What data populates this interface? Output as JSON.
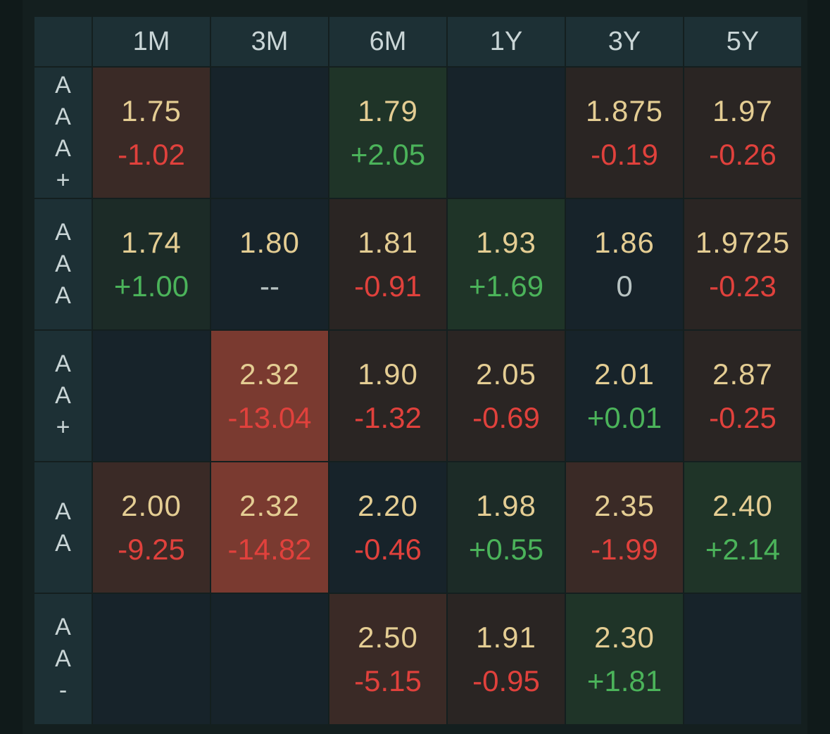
{
  "columns": [
    "1M",
    "3M",
    "6M",
    "1Y",
    "3Y",
    "5Y"
  ],
  "rows": [
    {
      "label_chars": [
        "A",
        "A",
        "A",
        "+"
      ],
      "cells": [
        {
          "value": "1.75",
          "change": "-1.02",
          "tone": "neg",
          "bg": "midred"
        },
        {
          "value": "",
          "change": "",
          "tone": "",
          "bg": "empty"
        },
        {
          "value": "1.79",
          "change": "+2.05",
          "tone": "pos",
          "bg": "green"
        },
        {
          "value": "",
          "change": "",
          "tone": "",
          "bg": "empty"
        },
        {
          "value": "1.875",
          "change": "-0.19",
          "tone": "neg",
          "bg": "lightred"
        },
        {
          "value": "1.97",
          "change": "-0.26",
          "tone": "neg",
          "bg": "lightred"
        }
      ]
    },
    {
      "label_chars": [
        "A",
        "A",
        "A"
      ],
      "cells": [
        {
          "value": "1.74",
          "change": "+1.00",
          "tone": "pos",
          "bg": "lightgreen"
        },
        {
          "value": "1.80",
          "change": "--",
          "tone": "neu",
          "bg": "neutral"
        },
        {
          "value": "1.81",
          "change": "-0.91",
          "tone": "neg",
          "bg": "lightred"
        },
        {
          "value": "1.93",
          "change": "+1.69",
          "tone": "pos",
          "bg": "green"
        },
        {
          "value": "1.86",
          "change": "0",
          "tone": "neu",
          "bg": "neutral"
        },
        {
          "value": "1.9725",
          "change": "-0.23",
          "tone": "neg",
          "bg": "lightred"
        }
      ]
    },
    {
      "label_chars": [
        "A",
        "A",
        "+"
      ],
      "cells": [
        {
          "value": "",
          "change": "",
          "tone": "",
          "bg": "empty"
        },
        {
          "value": "2.32",
          "change": "-13.04",
          "tone": "neg",
          "bg": "red"
        },
        {
          "value": "1.90",
          "change": "-1.32",
          "tone": "neg",
          "bg": "lightred"
        },
        {
          "value": "2.05",
          "change": "-0.69",
          "tone": "neg",
          "bg": "lightred"
        },
        {
          "value": "2.01",
          "change": "+0.01",
          "tone": "pos",
          "bg": "neutral"
        },
        {
          "value": "2.87",
          "change": "-0.25",
          "tone": "neg",
          "bg": "lightred"
        }
      ]
    },
    {
      "label_chars": [
        "A",
        "A"
      ],
      "cells": [
        {
          "value": "2.00",
          "change": "-9.25",
          "tone": "neg",
          "bg": "midred"
        },
        {
          "value": "2.32",
          "change": "-14.82",
          "tone": "neg",
          "bg": "red"
        },
        {
          "value": "2.20",
          "change": "-0.46",
          "tone": "neg",
          "bg": "neutral"
        },
        {
          "value": "1.98",
          "change": "+0.55",
          "tone": "pos",
          "bg": "lightgreen"
        },
        {
          "value": "2.35",
          "change": "-1.99",
          "tone": "neg",
          "bg": "midred"
        },
        {
          "value": "2.40",
          "change": "+2.14",
          "tone": "pos",
          "bg": "green"
        }
      ]
    },
    {
      "label_chars": [
        "A",
        "A",
        "-"
      ],
      "cells": [
        {
          "value": "",
          "change": "",
          "tone": "",
          "bg": "empty"
        },
        {
          "value": "",
          "change": "",
          "tone": "",
          "bg": "empty"
        },
        {
          "value": "2.50",
          "change": "-5.15",
          "tone": "neg",
          "bg": "midred"
        },
        {
          "value": "1.91",
          "change": "-0.95",
          "tone": "neg",
          "bg": "lightred"
        },
        {
          "value": "2.30",
          "change": "+1.81",
          "tone": "pos",
          "bg": "green"
        },
        {
          "value": "",
          "change": "",
          "tone": "",
          "bg": "empty"
        }
      ]
    }
  ],
  "colors": {
    "value_text": "#e4cd93",
    "negative": "#e0413c",
    "positive": "#4bb35a",
    "neutral": "#b8c3c2",
    "header_bg": "#1d3035"
  }
}
